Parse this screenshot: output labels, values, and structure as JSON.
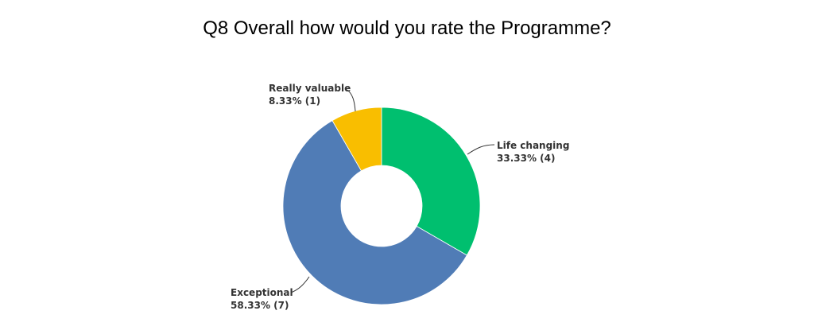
{
  "chart_data": {
    "type": "pie",
    "title": "Q8 Overall how would you rate the Programme?",
    "slices": [
      {
        "label": "Life changing",
        "value": 33.33,
        "count": 4,
        "value_text": "33.33% (4)",
        "color": "#00BF6F"
      },
      {
        "label": "Exceptional",
        "value": 58.33,
        "count": 7,
        "value_text": "58.33% (7)",
        "color": "#507CB6"
      },
      {
        "label": "Really valuable",
        "value": 8.33,
        "count": 1,
        "value_text": "8.33% (1)",
        "color": "#F9BE00"
      }
    ],
    "donut": true,
    "legend": "none"
  }
}
